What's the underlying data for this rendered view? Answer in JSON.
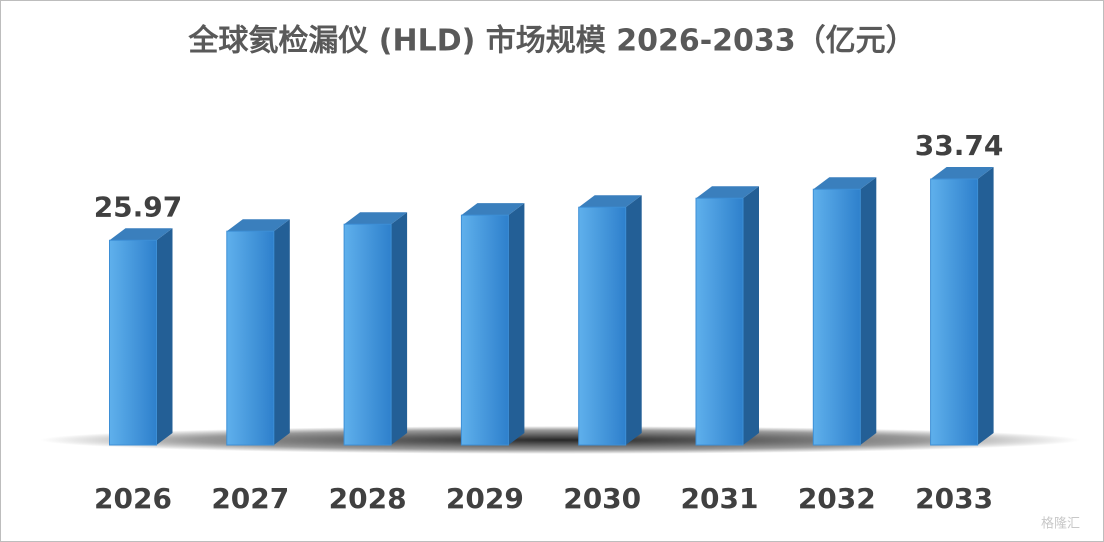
{
  "chart_data": {
    "type": "bar3d",
    "title": "全球氦检漏仪 (HLD) 市场规模 2026-2033（亿元）",
    "categories": [
      "2026",
      "2027",
      "2028",
      "2029",
      "2030",
      "2031",
      "2032",
      "2033"
    ],
    "values": [
      25.97,
      27.12,
      28.0,
      29.15,
      30.16,
      31.3,
      32.44,
      33.74
    ],
    "value_labels": [
      "25.97",
      null,
      null,
      null,
      null,
      null,
      null,
      "33.74"
    ],
    "color": "#3d8fd6"
  },
  "watermark": "格隆汇"
}
